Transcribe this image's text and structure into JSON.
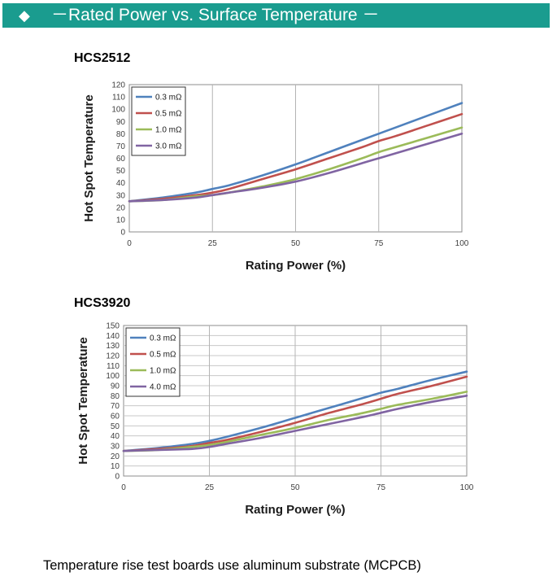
{
  "header": {
    "icon": "diamond-icon",
    "diamond": "◆",
    "title": "－Rated Power vs. Surface Temperature －",
    "color": "#1a9c8f"
  },
  "footnote": "Temperature rise test boards use aluminum substrate (MCPCB)",
  "chart_data": [
    {
      "type": "line",
      "title": "HCS2512",
      "xlabel": "Rating Power (%)",
      "ylabel": "Hot Spot Temperature",
      "xlim": [
        0,
        100
      ],
      "ylim": [
        0,
        120
      ],
      "xticks": [
        0,
        25,
        50,
        75,
        100
      ],
      "yticks": [
        0,
        10,
        20,
        30,
        40,
        50,
        60,
        70,
        80,
        90,
        100,
        110,
        120
      ],
      "grid": "vertical",
      "legend": "top-left",
      "x": [
        0,
        10,
        20,
        25,
        30,
        40,
        50,
        60,
        70,
        75,
        80,
        90,
        100
      ],
      "series": [
        {
          "name": "0.3 mΩ",
          "color": "#4f81bd",
          "values": [
            25,
            28,
            32,
            35,
            38,
            46,
            55,
            65,
            75,
            80,
            85,
            95,
            105
          ]
        },
        {
          "name": "0.5 mΩ",
          "color": "#c0504d",
          "values": [
            25,
            27,
            30,
            32,
            35,
            43,
            51,
            60,
            69,
            74,
            78,
            87,
            96
          ]
        },
        {
          "name": "1.0 mΩ",
          "color": "#9bbb59",
          "values": [
            25,
            26,
            29,
            30,
            32,
            37,
            43,
            51,
            60,
            65,
            69,
            77,
            85
          ]
        },
        {
          "name": "3.0 mΩ",
          "color": "#8064a2",
          "values": [
            25,
            26,
            28,
            30,
            32,
            36,
            41,
            48,
            56,
            60,
            64,
            72,
            80
          ]
        }
      ]
    },
    {
      "type": "line",
      "title": "HCS3920",
      "xlabel": "Rating Power (%)",
      "ylabel": "Hot Spot Temperature",
      "xlim": [
        0,
        100
      ],
      "ylim": [
        0,
        150
      ],
      "xticks": [
        0,
        25,
        50,
        75,
        100
      ],
      "yticks": [
        0,
        10,
        20,
        30,
        40,
        50,
        60,
        70,
        80,
        90,
        100,
        110,
        120,
        130,
        140,
        150
      ],
      "grid": "both",
      "legend": "top-left",
      "x": [
        0,
        10,
        20,
        25,
        30,
        40,
        50,
        60,
        70,
        75,
        80,
        90,
        100
      ],
      "series": [
        {
          "name": "0.3 mΩ",
          "color": "#4f81bd",
          "values": [
            25,
            28,
            32,
            35,
            39,
            48,
            58,
            68,
            78,
            83,
            87,
            96,
            104
          ]
        },
        {
          "name": "0.5 mΩ",
          "color": "#c0504d",
          "values": [
            25,
            27,
            30,
            33,
            36,
            44,
            53,
            63,
            72,
            77,
            82,
            90,
            99
          ]
        },
        {
          "name": "1.0 mΩ",
          "color": "#9bbb59",
          "values": [
            25,
            26,
            29,
            31,
            34,
            41,
            48,
            56,
            63,
            67,
            71,
            77,
            84
          ]
        },
        {
          "name": "4.0 mΩ",
          "color": "#8064a2",
          "values": [
            25,
            26,
            27,
            29,
            32,
            38,
            45,
            52,
            59,
            63,
            67,
            74,
            80
          ]
        }
      ]
    }
  ]
}
